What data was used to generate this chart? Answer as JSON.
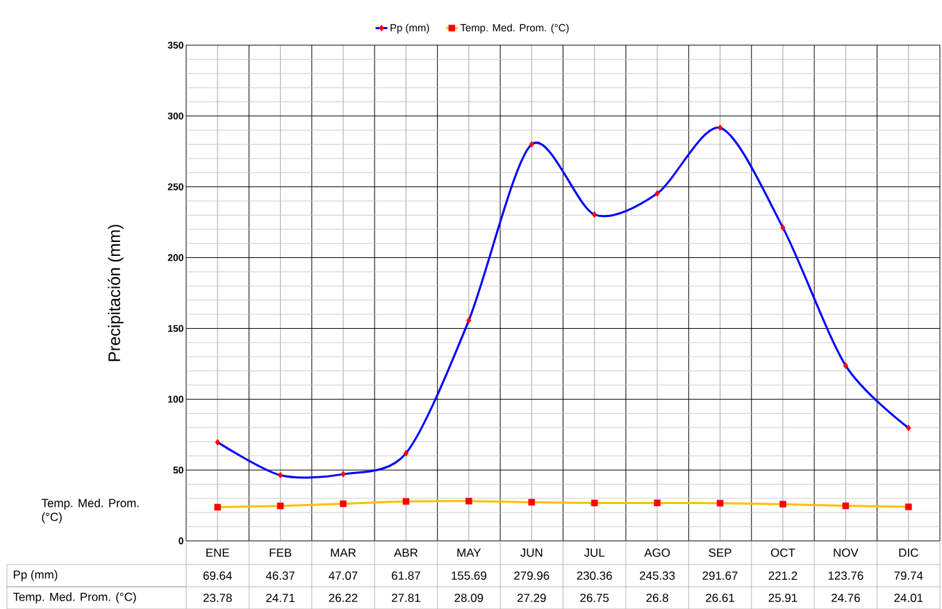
{
  "chart_data": {
    "type": "line",
    "ylabel": "Precipitación (mm)",
    "categories": [
      "ENE",
      "FEB",
      "MAR",
      "ABR",
      "MAY",
      "JUN",
      "JUL",
      "AGO",
      "SEP",
      "OCT",
      "NOV",
      "DIC"
    ],
    "series": [
      {
        "name": "Pp (mm)",
        "color": "#0000ff",
        "marker": "diamond",
        "values": [
          69.64,
          46.37,
          47.07,
          61.87,
          155.69,
          279.96,
          230.36,
          245.33,
          291.67,
          221.2,
          123.76,
          79.74
        ]
      },
      {
        "name": "Temp. Med. Prom. (°C)",
        "color": "#ffc000",
        "marker": "square",
        "values": [
          23.78,
          24.71,
          26.22,
          27.81,
          28.09,
          27.29,
          26.75,
          26.8,
          26.61,
          25.91,
          24.76,
          24.01
        ]
      }
    ],
    "ylim": [
      0,
      350
    ],
    "yticks": [
      0,
      50,
      100,
      150,
      200,
      250,
      300,
      350
    ],
    "grid": true,
    "legend": "top",
    "data_labels": true,
    "annotations": [
      "Temp. Med. Prom. (°C)"
    ]
  }
}
